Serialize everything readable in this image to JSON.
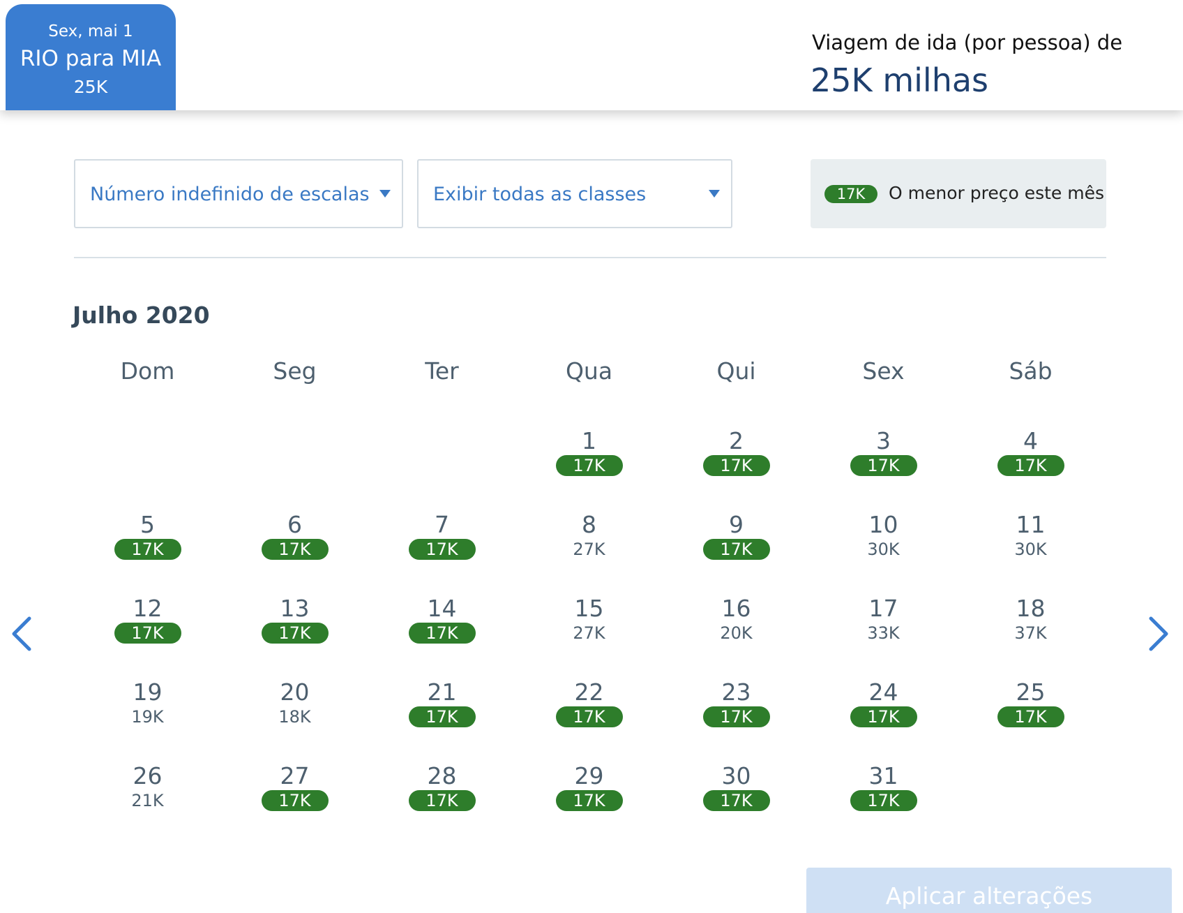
{
  "header": {
    "trip_tab": {
      "date": "Sex, mai 1",
      "route": "RIO para MIA",
      "price": "25K"
    },
    "fare_label": "Viagem de ida (por pessoa) de",
    "fare_value": "25K milhas"
  },
  "filters": {
    "stops": {
      "value": "Número indefinido de escalas",
      "icon": "chevron-down-icon"
    },
    "classes": {
      "value": "Exibir todas as classes",
      "icon": "chevron-down-icon"
    }
  },
  "legend": {
    "pill": "17K",
    "text": "O menor preço este mês"
  },
  "calendar": {
    "month": "Julho 2020",
    "weekdays": [
      "Dom",
      "Seg",
      "Ter",
      "Qua",
      "Qui",
      "Sex",
      "Sáb"
    ],
    "first_weekday_index": 3,
    "days": [
      {
        "d": "1",
        "price": "17K",
        "lowest": true
      },
      {
        "d": "2",
        "price": "17K",
        "lowest": true
      },
      {
        "d": "3",
        "price": "17K",
        "lowest": true
      },
      {
        "d": "4",
        "price": "17K",
        "lowest": true
      },
      {
        "d": "5",
        "price": "17K",
        "lowest": true
      },
      {
        "d": "6",
        "price": "17K",
        "lowest": true
      },
      {
        "d": "7",
        "price": "17K",
        "lowest": true
      },
      {
        "d": "8",
        "price": "27K",
        "lowest": false
      },
      {
        "d": "9",
        "price": "17K",
        "lowest": true
      },
      {
        "d": "10",
        "price": "30K",
        "lowest": false
      },
      {
        "d": "11",
        "price": "30K",
        "lowest": false
      },
      {
        "d": "12",
        "price": "17K",
        "lowest": true
      },
      {
        "d": "13",
        "price": "17K",
        "lowest": true
      },
      {
        "d": "14",
        "price": "17K",
        "lowest": true
      },
      {
        "d": "15",
        "price": "27K",
        "lowest": false
      },
      {
        "d": "16",
        "price": "20K",
        "lowest": false
      },
      {
        "d": "17",
        "price": "33K",
        "lowest": false
      },
      {
        "d": "18",
        "price": "37K",
        "lowest": false
      },
      {
        "d": "19",
        "price": "19K",
        "lowest": false
      },
      {
        "d": "20",
        "price": "18K",
        "lowest": false
      },
      {
        "d": "21",
        "price": "17K",
        "lowest": true
      },
      {
        "d": "22",
        "price": "17K",
        "lowest": true
      },
      {
        "d": "23",
        "price": "17K",
        "lowest": true
      },
      {
        "d": "24",
        "price": "17K",
        "lowest": true
      },
      {
        "d": "25",
        "price": "17K",
        "lowest": true
      },
      {
        "d": "26",
        "price": "21K",
        "lowest": false
      },
      {
        "d": "27",
        "price": "17K",
        "lowest": true
      },
      {
        "d": "28",
        "price": "17K",
        "lowest": true
      },
      {
        "d": "29",
        "price": "17K",
        "lowest": true
      },
      {
        "d": "30",
        "price": "17K",
        "lowest": true
      },
      {
        "d": "31",
        "price": "17K",
        "lowest": true
      }
    ],
    "prev_icon": "chevron-left-icon",
    "next_icon": "chevron-right-icon"
  },
  "actions": {
    "apply_label": "Aplicar alterações"
  },
  "colors": {
    "accent_blue": "#3a7dd1",
    "lowest_green": "#2e7d2b",
    "fare_navy": "#1e3f6e",
    "apply_disabled": "#cfe0f4"
  }
}
